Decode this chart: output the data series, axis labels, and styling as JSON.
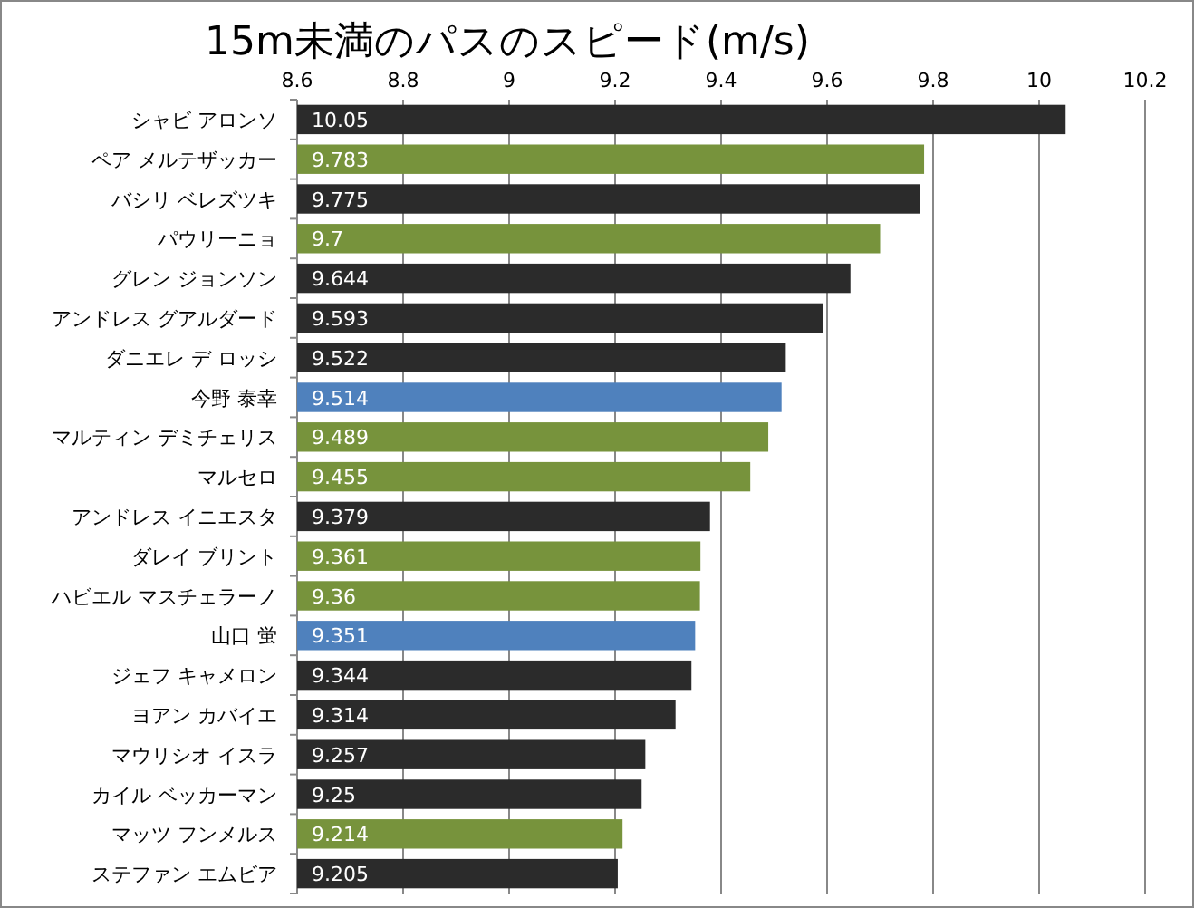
{
  "chart_data": {
    "type": "bar",
    "orientation": "horizontal",
    "title": "15m未満のパスのスピード(m/s)",
    "categories": [
      "シャビ アロンソ",
      "ペア メルテザッカー",
      "バシリ ベレズツキ",
      "パウリーニョ",
      "グレン ジョンソン",
      "アンドレス グアルダード",
      "ダニエレ デ ロッシ",
      "今野 泰幸",
      "マルティン デミチェリス",
      "マルセロ",
      "アンドレス イニエスタ",
      "ダレイ ブリント",
      "ハビエル マスチェラーノ",
      "山口 蛍",
      "ジェフ キャメロン",
      "ヨアン カバイエ",
      "マウリシオ イスラ",
      "カイル ベッカーマン",
      "マッツ フンメルス",
      "ステファン エムビア"
    ],
    "values": [
      10.05,
      9.783,
      9.775,
      9.7,
      9.644,
      9.593,
      9.522,
      9.514,
      9.489,
      9.455,
      9.379,
      9.361,
      9.36,
      9.351,
      9.344,
      9.314,
      9.257,
      9.25,
      9.214,
      9.205
    ],
    "colors": [
      "#2b2b2b",
      "#77933c",
      "#2b2b2b",
      "#77933c",
      "#2b2b2b",
      "#2b2b2b",
      "#2b2b2b",
      "#4f81bd",
      "#77933c",
      "#77933c",
      "#2b2b2b",
      "#77933c",
      "#77933c",
      "#4f81bd",
      "#2b2b2b",
      "#2b2b2b",
      "#2b2b2b",
      "#2b2b2b",
      "#77933c",
      "#2b2b2b"
    ],
    "xlim": [
      8.6,
      10.2
    ],
    "xticks": [
      8.6,
      8.8,
      9,
      9.2,
      9.4,
      9.6,
      9.8,
      10,
      10.2
    ],
    "grid": "x",
    "data_labels": true
  }
}
